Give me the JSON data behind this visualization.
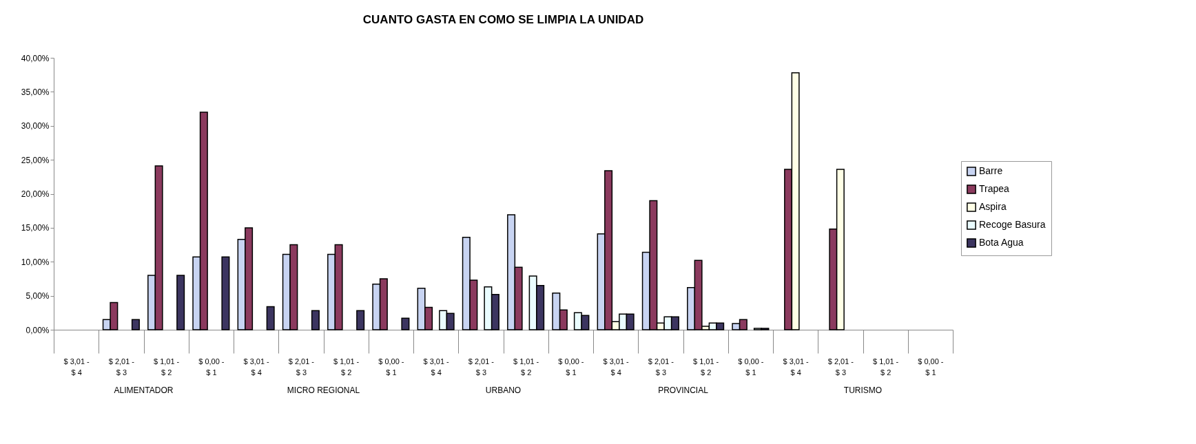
{
  "chart_data": {
    "type": "bar",
    "title": "CUANTO GASTA EN COMO SE LIMPIA LA UNIDAD",
    "categories": [
      "$ 3,01 - $ 4",
      "$ 2,01 - $ 3",
      "$ 1,01 - $ 2",
      "$ 0,00 - $ 1",
      "$ 3,01 - $ 4",
      "$ 2,01 - $ 3",
      "$ 1,01 - $ 2",
      "$ 0,00 - $ 1",
      "$ 3,01 - $ 4",
      "$ 2,01 - $ 3",
      "$ 1,01 - $ 2",
      "$ 0,00 - $ 1",
      "$ 3,01 - $ 4",
      "$ 2,01 - $ 3",
      "$ 1,01 - $ 2",
      "$ 0,00 - $ 1",
      "$ 3,01 - $ 4",
      "$ 2,01 - $ 3",
      "$ 1,01 - $ 2",
      "$ 0,00 - $ 1"
    ],
    "annotations": [
      "ALIMENTADOR",
      "MICRO REGIONAL",
      "URBANO",
      "PROVINCIAL",
      "TURISMO"
    ],
    "series": [
      {
        "name": "Barre",
        "color": "#c8d4f2",
        "values": [
          0,
          1.5,
          8.0,
          10.7,
          13.3,
          11.1,
          11.1,
          6.7,
          6.1,
          13.6,
          16.9,
          5.4,
          14.1,
          11.4,
          6.2,
          0.9,
          0,
          0,
          0,
          0
        ]
      },
      {
        "name": "Trapea",
        "color": "#8b3a5e",
        "values": [
          0,
          4.0,
          24.1,
          32.0,
          15.0,
          12.5,
          12.5,
          7.5,
          3.3,
          7.3,
          9.2,
          2.9,
          23.4,
          19.0,
          10.2,
          1.5,
          23.6,
          14.8,
          0,
          0
        ]
      },
      {
        "name": "Aspira",
        "color": "#ffffe6",
        "values": [
          0,
          0,
          0,
          0,
          0,
          0,
          0,
          0,
          0,
          0,
          0,
          0,
          1.2,
          1.0,
          0.5,
          0,
          37.8,
          23.6,
          0,
          0
        ]
      },
      {
        "name": "Recoge Basura",
        "color": "#eafcff",
        "values": [
          0,
          0,
          0,
          0,
          0,
          0,
          0,
          0,
          2.8,
          6.3,
          7.9,
          2.5,
          2.3,
          1.9,
          1.0,
          0.2,
          0,
          0,
          0,
          0
        ]
      },
      {
        "name": "Bota Agua",
        "color": "#3c3560",
        "values": [
          0,
          1.5,
          8.0,
          10.7,
          3.4,
          2.8,
          2.8,
          1.7,
          2.4,
          5.2,
          6.5,
          2.1,
          2.3,
          1.9,
          1.0,
          0.2,
          0,
          0,
          0,
          0
        ]
      }
    ],
    "ylim": [
      0,
      40
    ],
    "yticks": [
      {
        "value": 0,
        "label": "0,00%"
      },
      {
        "value": 5,
        "label": "5,00%"
      },
      {
        "value": 10,
        "label": "10,00%"
      },
      {
        "value": 15,
        "label": "15,00%"
      },
      {
        "value": 20,
        "label": "20,00%"
      },
      {
        "value": 25,
        "label": "25,00%"
      },
      {
        "value": 30,
        "label": "30,00%"
      },
      {
        "value": 35,
        "label": "35,00%"
      },
      {
        "value": 40,
        "label": "40,00%"
      }
    ],
    "grid": false,
    "legend": "right"
  }
}
